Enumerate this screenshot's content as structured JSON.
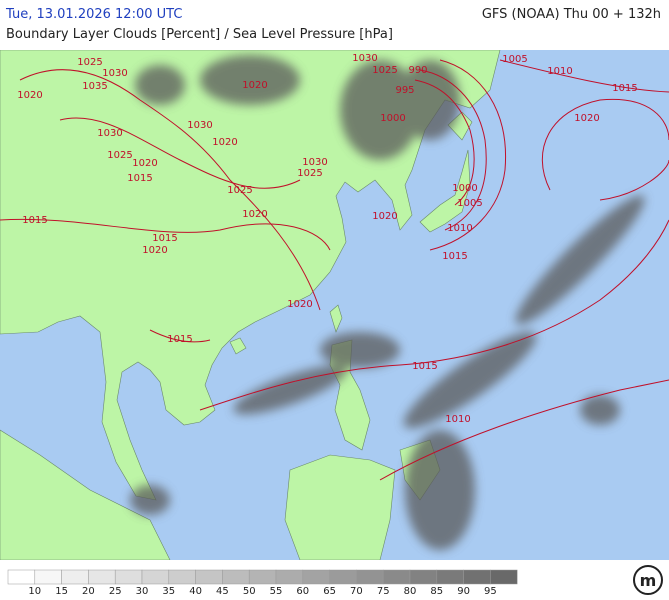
{
  "header": {
    "left_title": "Tue, 13.01.2026 12:00 UTC",
    "right_title": "GFS (NOAA) Thu 00 + 132h",
    "subtitle": "Boundary Layer Clouds [Percent] / Sea Level Pressure [hPa]"
  },
  "isobar_labels": [
    1025,
    1030,
    1020,
    1035,
    1030,
    1025,
    1020,
    1015,
    1015,
    1025,
    1020,
    1030,
    1025,
    1020,
    1030,
    1025,
    1020,
    1010,
    1005,
    1000,
    1015,
    1005,
    1010,
    1015,
    1020,
    1020,
    1015,
    1015,
    1010,
    990,
    995,
    1000,
    1015,
    1020,
    1030,
    1020
  ],
  "legend": {
    "labels": [
      10,
      15,
      20,
      25,
      30,
      35,
      40,
      45,
      50,
      55,
      60,
      65,
      70,
      75,
      80,
      85,
      90,
      95
    ]
  },
  "logo": "m"
}
